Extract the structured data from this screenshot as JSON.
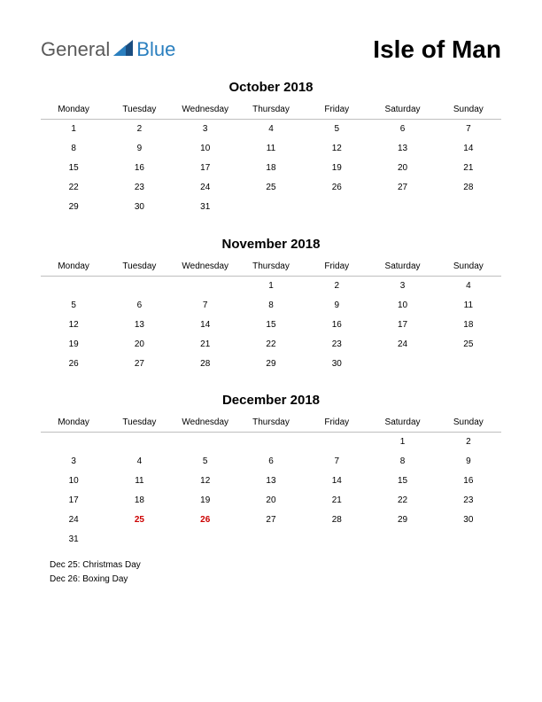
{
  "header": {
    "logo_part1": "General",
    "logo_part2": "Blue",
    "title": "Isle of Man"
  },
  "logo_colors": {
    "gray": "#5a5a5a",
    "blue": "#2a7fbf",
    "dark_blue": "#1a4d80"
  },
  "weekdays": [
    "Monday",
    "Tuesday",
    "Wednesday",
    "Thursday",
    "Friday",
    "Saturday",
    "Sunday"
  ],
  "months": [
    {
      "title": "October 2018",
      "weeks": [
        [
          "1",
          "2",
          "3",
          "4",
          "5",
          "6",
          "7"
        ],
        [
          "8",
          "9",
          "10",
          "11",
          "12",
          "13",
          "14"
        ],
        [
          "15",
          "16",
          "17",
          "18",
          "19",
          "20",
          "21"
        ],
        [
          "22",
          "23",
          "24",
          "25",
          "26",
          "27",
          "28"
        ],
        [
          "29",
          "30",
          "31",
          "",
          "",
          "",
          ""
        ]
      ],
      "holidays": []
    },
    {
      "title": "November 2018",
      "weeks": [
        [
          "",
          "",
          "",
          "1",
          "2",
          "3",
          "4"
        ],
        [
          "5",
          "6",
          "7",
          "8",
          "9",
          "10",
          "11"
        ],
        [
          "12",
          "13",
          "14",
          "15",
          "16",
          "17",
          "18"
        ],
        [
          "19",
          "20",
          "21",
          "22",
          "23",
          "24",
          "25"
        ],
        [
          "26",
          "27",
          "28",
          "29",
          "30",
          "",
          ""
        ]
      ],
      "holidays": []
    },
    {
      "title": "December 2018",
      "weeks": [
        [
          "",
          "",
          "",
          "",
          "",
          "1",
          "2"
        ],
        [
          "3",
          "4",
          "5",
          "6",
          "7",
          "8",
          "9"
        ],
        [
          "10",
          "11",
          "12",
          "13",
          "14",
          "15",
          "16"
        ],
        [
          "17",
          "18",
          "19",
          "20",
          "21",
          "22",
          "23"
        ],
        [
          "24",
          "25",
          "26",
          "27",
          "28",
          "29",
          "30"
        ],
        [
          "31",
          "",
          "",
          "",
          "",
          "",
          ""
        ]
      ],
      "holiday_days": [
        "25",
        "26"
      ],
      "holidays": [
        "Dec 25: Christmas Day",
        "Dec 26: Boxing Day"
      ]
    }
  ],
  "colors": {
    "text": "#000000",
    "holiday": "#cc0000",
    "border": "#bfbfbf",
    "background": "#ffffff"
  },
  "fonts": {
    "title_size": 28,
    "month_title_size": 15,
    "cell_size": 10,
    "holiday_size": 10
  }
}
